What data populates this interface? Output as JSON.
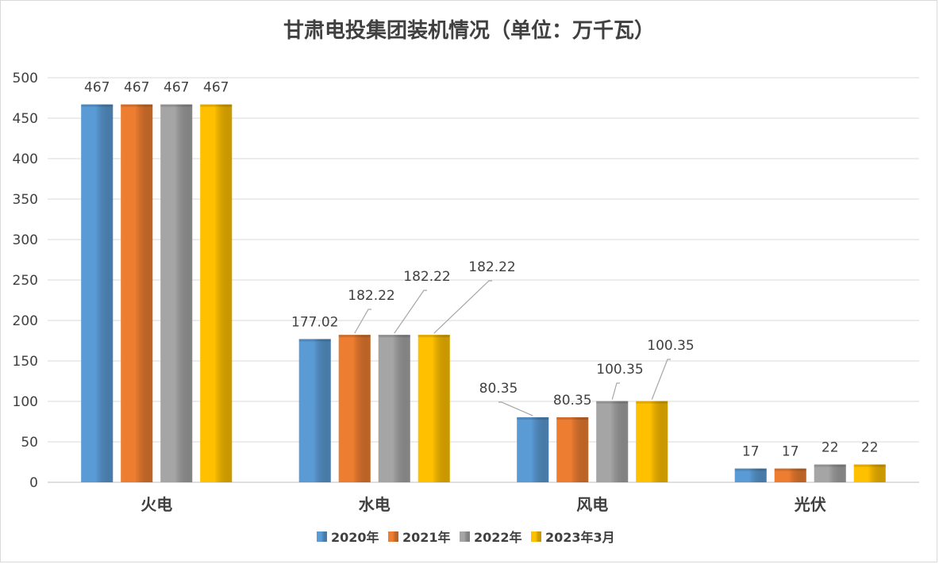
{
  "chart_data": {
    "type": "bar",
    "title": "甘肃电投集团装机情况（单位：万千瓦）",
    "categories": [
      "火电",
      "水电",
      "风电",
      "光伏"
    ],
    "series": [
      {
        "name": "2020年",
        "values": [
          467,
          177.02,
          80.35,
          17
        ],
        "labels": [
          "467",
          "177.02",
          "80.35",
          "17"
        ]
      },
      {
        "name": "2021年",
        "values": [
          467,
          182.22,
          80.35,
          17
        ],
        "labels": [
          "467",
          "182.22",
          "80.35",
          "17"
        ]
      },
      {
        "name": "2022年",
        "values": [
          467,
          182.22,
          100.35,
          22
        ],
        "labels": [
          "467",
          "182.22",
          "100.35",
          "22"
        ]
      },
      {
        "name": "2023年3月",
        "values": [
          467,
          182.22,
          100.35,
          22
        ],
        "labels": [
          "467",
          "182.22",
          "100.35",
          "22"
        ]
      }
    ],
    "ylim": [
      0,
      500
    ],
    "yticks": [
      "0",
      "50",
      "100",
      "150",
      "200",
      "250",
      "300",
      "350",
      "400",
      "450",
      "500"
    ],
    "grid": true,
    "legend": "bottom",
    "colors": [
      "#5b9bd5",
      "#ed7d31",
      "#a5a5a5",
      "#ffc000"
    ]
  }
}
